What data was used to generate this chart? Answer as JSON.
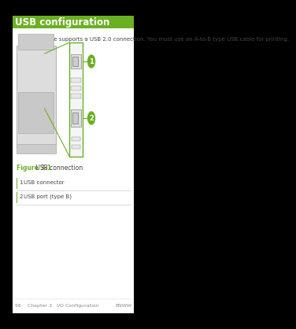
{
  "bg_color": "#000000",
  "page_bg": "#ffffff",
  "title": "USB configuration",
  "title_color": "#6ab023",
  "title_fontsize": 8.5,
  "body_text": "This device supports a USB 2.0 connection. You must use an A-to-B type USB cable for printing.",
  "body_fontsize": 5.0,
  "body_color": "#444444",
  "figure_label": "Figure 3-1",
  "figure_label_color": "#6ab023",
  "figure_caption": " USB connection",
  "figure_caption_color": "#444444",
  "figure_fontsize": 5.5,
  "callout1_label": "1",
  "callout2_label": "2",
  "callout_color": "#6ab023",
  "row1_num": "1",
  "row1_text": "USB connector",
  "row2_num": "2",
  "row2_text": "USB port (type B)",
  "row_fontsize": 5.0,
  "row_color": "#444444",
  "footer_left": "56    Chapter 3   I/O Configuration",
  "footer_right": "ENWW",
  "footer_color": "#888888",
  "footer_fontsize": 4.5,
  "top_bar_height": 0.038,
  "bottom_bar_height": 0.025,
  "side_bar_width": 0.038
}
